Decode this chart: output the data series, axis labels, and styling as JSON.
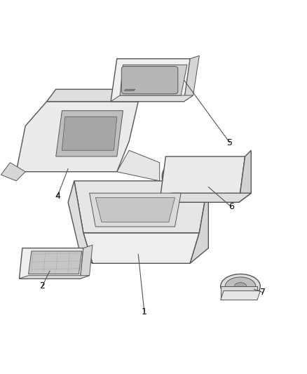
{
  "background_color": "#ffffff",
  "line_color": "#555555",
  "label_color": "#000000",
  "figsize": [
    4.38,
    5.33
  ],
  "dpi": 100
}
